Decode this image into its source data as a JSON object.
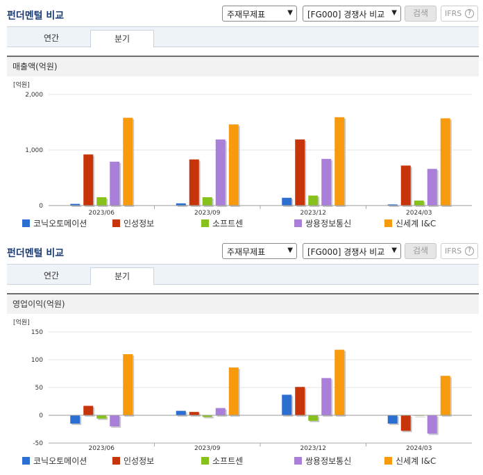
{
  "panels": [
    {
      "title": "펀더멘털 비교",
      "select1": "주재무제표",
      "select2": "[FG000] 경쟁사 비교",
      "search_label": "검색",
      "ifrs_label": "IFRS",
      "tabs": [
        "연간",
        "분기"
      ],
      "active_tab": "분기",
      "section_label": "매출액(억원)"
    },
    {
      "title": "펀더멘털 비교",
      "select1": "주재무제표",
      "select2": "[FG000] 경쟁사 비교",
      "search_label": "검색",
      "ifrs_label": "IFRS",
      "tabs": [
        "연간",
        "분기"
      ],
      "active_tab": "분기",
      "section_label": "영업이익(억원)"
    }
  ],
  "colors": {
    "코닉오토메이션": "#2a6fd1",
    "인성정보": "#c8340a",
    "소프트센": "#86c21b",
    "쌍용정보통신": "#a97fd9",
    "신세계 I&C": "#f79a0e"
  },
  "chart_data": [
    {
      "type": "bar",
      "unit": "[억원]",
      "categories": [
        "2023/06",
        "2023/09",
        "2023/12",
        "2024/03"
      ],
      "ylim": [
        0,
        2000
      ],
      "yticks": [
        "0",
        "1,000",
        "2,000"
      ],
      "ytick_values": [
        0,
        1000,
        2000
      ],
      "series": [
        {
          "name": "코닉오토메이션",
          "values": [
            30,
            40,
            140,
            20
          ]
        },
        {
          "name": "인성정보",
          "values": [
            920,
            830,
            1190,
            720
          ]
        },
        {
          "name": "소프트센",
          "values": [
            150,
            150,
            180,
            90
          ]
        },
        {
          "name": "쌍용정보통신",
          "values": [
            790,
            1190,
            840,
            660
          ]
        },
        {
          "name": "신세계 I&C",
          "values": [
            1580,
            1460,
            1590,
            1570
          ]
        }
      ]
    },
    {
      "type": "bar",
      "unit": "[억원]",
      "categories": [
        "2023/06",
        "2023/09",
        "2023/12",
        "2024/03"
      ],
      "ylim": [
        -50,
        150
      ],
      "yticks": [
        "-50",
        "0",
        "50",
        "100",
        "150"
      ],
      "ytick_values": [
        -50,
        0,
        50,
        100,
        150
      ],
      "series": [
        {
          "name": "코닉오토메이션",
          "values": [
            -15,
            8,
            37,
            -15
          ]
        },
        {
          "name": "인성정보",
          "values": [
            17,
            6,
            51,
            -28
          ]
        },
        {
          "name": "소프트센",
          "values": [
            -6,
            -3,
            -10,
            0
          ]
        },
        {
          "name": "쌍용정보통신",
          "values": [
            -20,
            13,
            67,
            -33
          ]
        },
        {
          "name": "신세계 I&C",
          "values": [
            110,
            86,
            118,
            71
          ]
        }
      ]
    }
  ]
}
